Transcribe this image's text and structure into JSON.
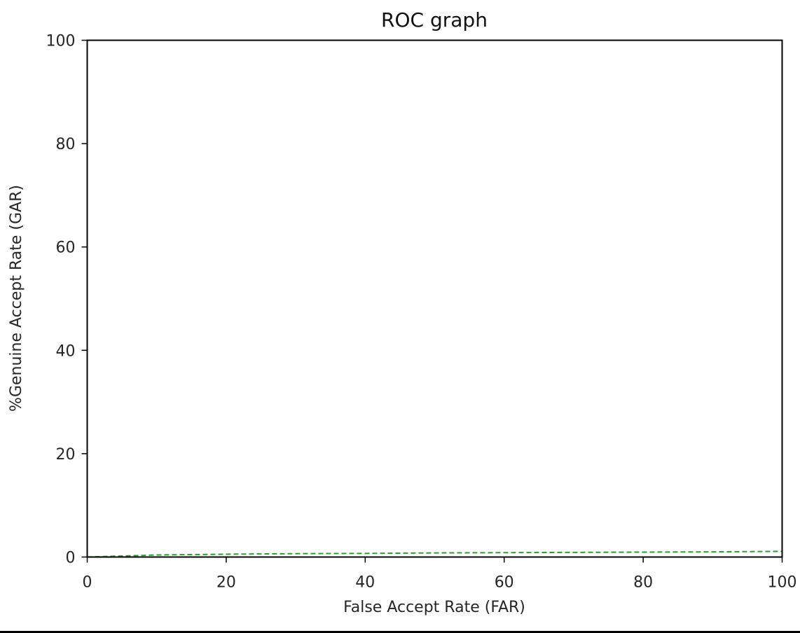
{
  "chart_data": {
    "type": "line",
    "title": "ROC graph",
    "xlabel": "False Accept Rate (FAR)",
    "ylabel": "%Genuine Accept Rate (GAR)",
    "xlim": [
      0,
      100
    ],
    "ylim": [
      0,
      100
    ],
    "xticks": [
      "0",
      "20",
      "40",
      "60",
      "80",
      "100"
    ],
    "yticks": [
      "0",
      "20",
      "40",
      "60",
      "80",
      "100"
    ],
    "grid": false,
    "series": [
      {
        "color": "#2ca02c",
        "line_style": "dashed",
        "x": [
          0,
          10,
          20,
          30,
          40,
          50,
          60,
          70,
          80,
          90,
          100
        ],
        "y": [
          0,
          0.4,
          0.55,
          0.65,
          0.7,
          0.8,
          0.85,
          0.9,
          0.95,
          1.0,
          1.1
        ]
      }
    ]
  }
}
